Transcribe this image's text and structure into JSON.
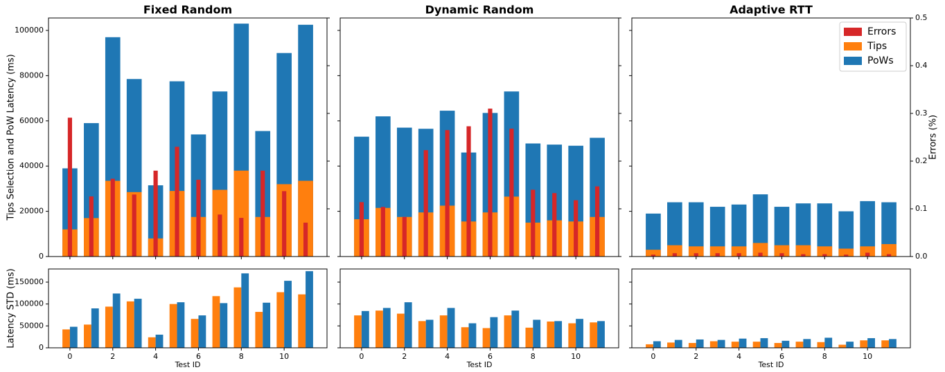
{
  "chart_data": [
    {
      "type": "bar",
      "bar_mode": "overlay",
      "title": "Fixed Random",
      "ylabel": "Tips Selection and PoW Latency (ms)",
      "x": [
        0,
        1,
        2,
        3,
        4,
        5,
        6,
        7,
        8,
        9,
        10,
        11
      ],
      "ylim": [
        0,
        105500
      ],
      "yticks": [
        0,
        20000,
        40000,
        60000,
        80000,
        100000
      ],
      "series": [
        {
          "color": "#1f77b4",
          "values": [
            39000,
            59000,
            97000,
            78500,
            31500,
            77500,
            54000,
            73000,
            103000,
            55500,
            90000,
            102500
          ]
        },
        {
          "color": "#ff7f0e",
          "values": [
            12000,
            17000,
            33500,
            28500,
            8000,
            29000,
            17500,
            29500,
            38000,
            17500,
            32000,
            33500
          ]
        },
        {
          "color": "#d62728",
          "axis": "y2",
          "values": [
            0.291,
            0.126,
            0.163,
            0.13,
            0.18,
            0.23,
            0.161,
            0.088,
            0.081,
            0.18,
            0.137,
            0.071
          ]
        }
      ]
    },
    {
      "type": "bar",
      "bar_mode": "overlay",
      "title": "Dynamic Random",
      "x": [
        0,
        1,
        2,
        3,
        4,
        5,
        6,
        7,
        8,
        9,
        10,
        11
      ],
      "series": [
        {
          "color": "#1f77b4",
          "values": [
            53000,
            62000,
            57000,
            56500,
            64500,
            46000,
            63500,
            73000,
            50000,
            49500,
            49000,
            52500
          ]
        },
        {
          "color": "#ff7f0e",
          "values": [
            16500,
            21500,
            17500,
            19500,
            22500,
            15500,
            19500,
            26500,
            15000,
            16000,
            15500,
            17500
          ]
        },
        {
          "color": "#d62728",
          "axis": "y2",
          "values": [
            0.114,
            0.104,
            0.083,
            0.223,
            0.265,
            0.273,
            0.31,
            0.268,
            0.14,
            0.133,
            0.118,
            0.147
          ]
        }
      ]
    },
    {
      "type": "bar",
      "bar_mode": "overlay",
      "title": "Adaptive RTT",
      "y2label": "Errors (%)",
      "legend": "upper right",
      "x": [
        0,
        1,
        2,
        3,
        4,
        5,
        6,
        7,
        8,
        9,
        10,
        11
      ],
      "y2lim": [
        0,
        0.5
      ],
      "y2ticks": [
        {
          "value": 0,
          "label": "0.0"
        },
        0.1,
        0.2,
        0.3,
        0.4,
        0.5
      ],
      "series": [
        {
          "name": "PoWs",
          "color": "#1f77b4",
          "values": [
            19000,
            24000,
            24000,
            22000,
            23000,
            27500,
            22000,
            23500,
            23500,
            20000,
            24500,
            24000
          ]
        },
        {
          "name": "Tips",
          "color": "#ff7f0e",
          "values": [
            3000,
            5000,
            4500,
            4500,
            4500,
            6000,
            5000,
            5000,
            4500,
            3500,
            4500,
            5500
          ]
        },
        {
          "name": "Errors",
          "color": "#d62728",
          "axis": "y2",
          "values": [
            0.004,
            0.007,
            0.007,
            0.007,
            0.007,
            0.008,
            0.007,
            0.005,
            0.005,
            0.004,
            0.008,
            0.005
          ]
        }
      ]
    },
    {
      "type": "bar",
      "bar_mode": "grouped",
      "ylabel": "Latency STD (ms)",
      "xlabel": "Test ID",
      "x": [
        0,
        1,
        2,
        3,
        4,
        5,
        6,
        7,
        8,
        9,
        10,
        11
      ],
      "xlim": [
        -1,
        12
      ],
      "xticks": [
        0,
        2,
        4,
        6,
        8,
        10
      ],
      "ylim": [
        0,
        180000
      ],
      "yticks": [
        0,
        50000,
        100000,
        150000
      ],
      "series": [
        {
          "color": "#ff7f0e",
          "values": [
            42000,
            53000,
            94000,
            106000,
            24000,
            100000,
            66000,
            118000,
            138000,
            82000,
            127000,
            122000
          ]
        },
        {
          "color": "#1f77b4",
          "values": [
            48000,
            90000,
            124000,
            112000,
            30000,
            104000,
            74000,
            102000,
            170000,
            103000,
            153000,
            175000
          ]
        }
      ]
    },
    {
      "type": "bar",
      "bar_mode": "grouped",
      "xlabel": "Test ID",
      "x": [
        0,
        1,
        2,
        3,
        4,
        5,
        6,
        7,
        8,
        9,
        10,
        11
      ],
      "xlim": [
        -1,
        12
      ],
      "xticks": [
        0,
        2,
        4,
        6,
        8,
        10
      ],
      "series": [
        {
          "color": "#ff7f0e",
          "values": [
            74000,
            85000,
            78000,
            61000,
            74000,
            47000,
            45000,
            74000,
            46000,
            60000,
            56000,
            58000
          ]
        },
        {
          "color": "#1f77b4",
          "values": [
            84000,
            91000,
            104000,
            64000,
            91000,
            56000,
            70000,
            85000,
            64000,
            61000,
            66000,
            61000
          ]
        }
      ]
    },
    {
      "type": "bar",
      "bar_mode": "grouped",
      "xlabel": "Test ID",
      "x": [
        0,
        1,
        2,
        3,
        4,
        5,
        6,
        7,
        8,
        9,
        10,
        11
      ],
      "xlim": [
        -1,
        12
      ],
      "xticks": [
        0,
        2,
        4,
        6,
        8,
        10
      ],
      "series": [
        {
          "color": "#ff7f0e",
          "values": [
            8000,
            12000,
            11000,
            15000,
            14000,
            14000,
            11000,
            14000,
            13000,
            7000,
            17000,
            17000
          ]
        },
        {
          "color": "#1f77b4",
          "values": [
            15000,
            18000,
            19000,
            18000,
            21000,
            22000,
            16000,
            20000,
            23000,
            14000,
            22000,
            20000
          ]
        }
      ]
    }
  ]
}
